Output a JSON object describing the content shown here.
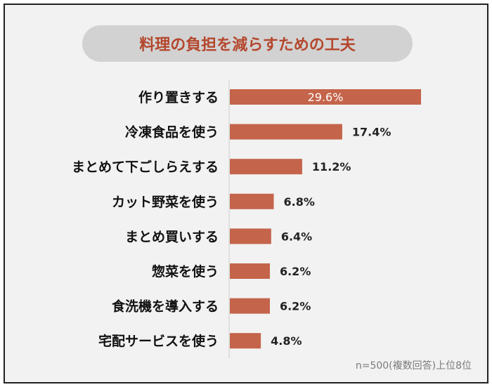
{
  "chart_data": {
    "type": "bar",
    "orientation": "horizontal",
    "title": "料理の負担を減らすための工夫",
    "categories": [
      "作り置きする",
      "冷凍食品を使う",
      "まとめて下ごしらえする",
      "カット野菜を使う",
      "まとめ買いする",
      "惣菜を使う",
      "食洗機を導入する",
      "宅配サービスを使う"
    ],
    "values": [
      29.6,
      17.4,
      11.2,
      6.8,
      6.4,
      6.2,
      6.2,
      4.8
    ],
    "value_labels": [
      "29.6%",
      "17.4%",
      "11.2%",
      "6.8%",
      "6.4%",
      "6.2%",
      "6.2%",
      "4.8%"
    ],
    "unit": "%",
    "grid": false,
    "bar_color": "#c4644a",
    "title_color": "#b4472d",
    "note": "n=500(複数回答)上位8位"
  }
}
